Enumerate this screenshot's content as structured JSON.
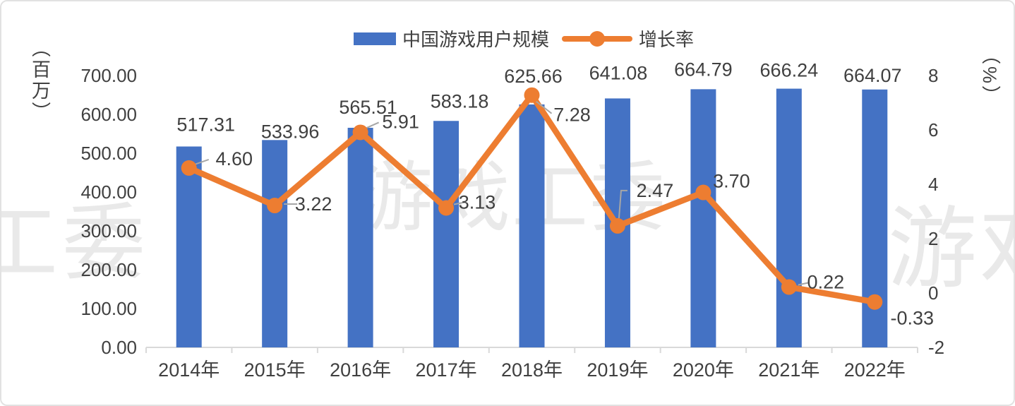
{
  "watermarks": [
    "工委",
    "游戏工委",
    "游戏"
  ],
  "colors": {
    "bar": "#4472C4",
    "line": "#ED7D31",
    "text": "#404040",
    "axis": "#D9D9D9",
    "leader": "#A6A6A6",
    "watermark": "#E9E9E9"
  },
  "chart_data": {
    "type": "combo",
    "title": "",
    "categories": [
      "2014年",
      "2015年",
      "2016年",
      "2017年",
      "2018年",
      "2019年",
      "2020年",
      "2021年",
      "2022年"
    ],
    "series": [
      {
        "name": "中国游戏用户规模",
        "type": "bar",
        "axis": "left",
        "unit": "百万",
        "color": "#4472C4",
        "values": [
          517.31,
          533.96,
          565.51,
          583.18,
          625.66,
          641.08,
          664.79,
          666.24,
          664.07
        ],
        "labels": [
          "517.31",
          "533.96",
          "565.51",
          "583.18",
          "625.66",
          "641.08",
          "664.79",
          "666.24",
          "664.07"
        ]
      },
      {
        "name": "增长率",
        "type": "line",
        "axis": "right",
        "unit": "%",
        "color": "#ED7D31",
        "values": [
          4.6,
          3.22,
          5.91,
          3.13,
          7.28,
          2.47,
          3.7,
          0.22,
          -0.33
        ],
        "labels": [
          "4.60",
          "3.22",
          "5.91",
          "3.13",
          "7.28",
          "2.47",
          "3.70",
          "0.22",
          "-0.33"
        ]
      }
    ],
    "left_axis": {
      "title": "（百万）",
      "min": 0,
      "max": 700,
      "step": 100,
      "tick_labels": [
        "700.00",
        "600.00",
        "500.00",
        "400.00",
        "300.00",
        "200.00",
        "100.00",
        "0.00"
      ]
    },
    "right_axis": {
      "title": "（%）",
      "min": -2,
      "max": 8,
      "step": 2,
      "tick_labels": [
        "8",
        "6",
        "4",
        "2",
        "0",
        "-2"
      ]
    },
    "grid": false,
    "legend_position": "top"
  }
}
